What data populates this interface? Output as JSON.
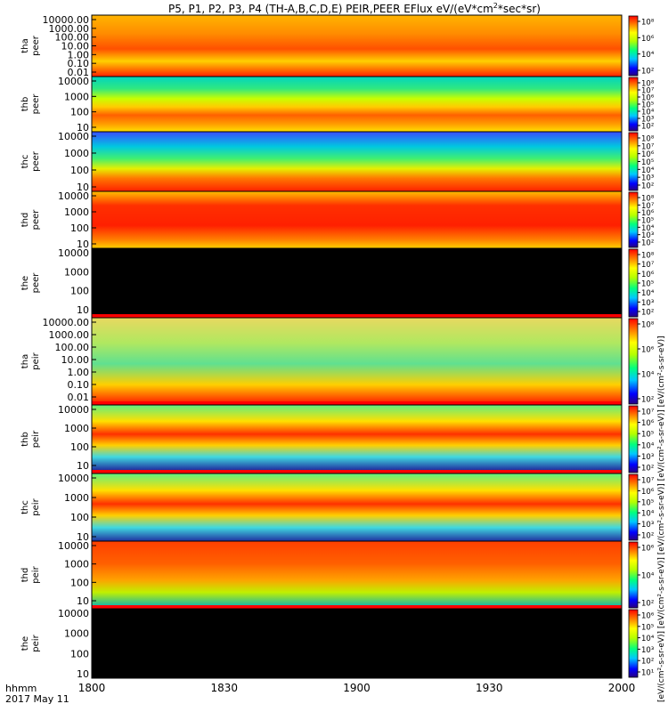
{
  "chart_data": {
    "type": "heatmap",
    "title": "P5, P1, P2, P3, P4 (TH-A,B,C,D,E) PEIR,PEER EFlux eV/(eV*cm²*sec*sr)",
    "title_main": "P5, P1, P2, P3, P4 (TH-A,B,C,D,E) PEIR,PEER EFlux eV/(eV*cm",
    "title_sup": "2",
    "title_end": "*sec*sr)",
    "x_axis": {
      "label_line1": "hhmm",
      "label_line2": "2017 May 11",
      "range": [
        "1800",
        "2000"
      ],
      "ticks": [
        "1800",
        "1830",
        "1900",
        "1930",
        "2000"
      ]
    },
    "colorbar_label": "[eV/(cm²-s-sr-eV)] [eV/(cm²-s-sr-eV)] [eV/(cm²-s-sr-eV)] [eV/(cm²-s-sr-eV)] [eV/(cm²-s-sr-eV)]",
    "panels": [
      {
        "probe": "tha",
        "product": "peer",
        "y_ticks": [
          "10000.00",
          "1000.00",
          "100.00",
          "10.00",
          "1.00",
          "0.10",
          "0.01"
        ],
        "cbar_ticks": [
          "10⁸",
          "10⁶",
          "10⁴",
          "10²"
        ],
        "fill": "grad_top",
        "flag_bar": false
      },
      {
        "probe": "thb",
        "product": "peer",
        "y_ticks": [
          "10000",
          "1000",
          "100",
          "10"
        ],
        "cbar_ticks": [
          "10⁸",
          "10⁷",
          "10⁶",
          "10⁵",
          "10⁴",
          "10³",
          "10²"
        ],
        "fill": "grad_spec1",
        "flag_bar": false
      },
      {
        "probe": "thc",
        "product": "peer",
        "y_ticks": [
          "10000",
          "1000",
          "100",
          "10"
        ],
        "cbar_ticks": [
          "10⁸",
          "10⁷",
          "10⁶",
          "10⁵",
          "10⁴",
          "10³",
          "10²"
        ],
        "fill": "grad_spec2",
        "flag_bar": false
      },
      {
        "probe": "thd",
        "product": "peer",
        "y_ticks": [
          "10000",
          "1000",
          "100",
          "10"
        ],
        "cbar_ticks": [
          "10⁸",
          "10⁷",
          "10⁶",
          "10⁵",
          "10⁴",
          "10³",
          "10²"
        ],
        "fill": "grad_red",
        "flag_bar": false
      },
      {
        "probe": "the",
        "product": "peer",
        "y_ticks": [
          "10000",
          "1000",
          "100",
          "10"
        ],
        "cbar_ticks": [
          "10⁸",
          "10⁷",
          "10⁶",
          "10⁵",
          "10⁴",
          "10³",
          "10²"
        ],
        "fill": "black",
        "flag_bar": true
      },
      {
        "probe": "tha",
        "product": "peir",
        "y_ticks": [
          "10000.00",
          "1000.00",
          "100.00",
          "10.00",
          "1.00",
          "0.10",
          "0.01"
        ],
        "cbar_ticks": [
          "10⁸",
          "10⁶",
          "10⁴",
          "10²"
        ],
        "fill": "grad_peir_a",
        "flag_bar": true
      },
      {
        "probe": "thb",
        "product": "peir",
        "y_ticks": [
          "10000",
          "1000",
          "100",
          "10"
        ],
        "cbar_ticks": [
          "10⁷",
          "10⁶",
          "10⁵",
          "10⁴",
          "10³",
          "10²"
        ],
        "fill": "grad_peir_b",
        "flag_bar": true
      },
      {
        "probe": "thc",
        "product": "peir",
        "y_ticks": [
          "10000",
          "1000",
          "100",
          "10"
        ],
        "cbar_ticks": [
          "10⁷",
          "10⁶",
          "10⁵",
          "10⁴",
          "10³",
          "10²"
        ],
        "fill": "grad_peir_b",
        "flag_bar": false
      },
      {
        "probe": "thd",
        "product": "peir",
        "y_ticks": [
          "10000",
          "1000",
          "100",
          "10"
        ],
        "cbar_ticks": [
          "10⁶",
          "10⁴",
          "10²"
        ],
        "fill": "grad_peir_d",
        "flag_bar": true
      },
      {
        "probe": "the",
        "product": "peir",
        "y_ticks": [
          "10000",
          "1000",
          "100",
          "10"
        ],
        "cbar_ticks": [
          "10⁶",
          "10⁵",
          "10⁴",
          "10³",
          "10²",
          "10¹"
        ],
        "fill": "black",
        "flag_bar": false
      }
    ]
  }
}
